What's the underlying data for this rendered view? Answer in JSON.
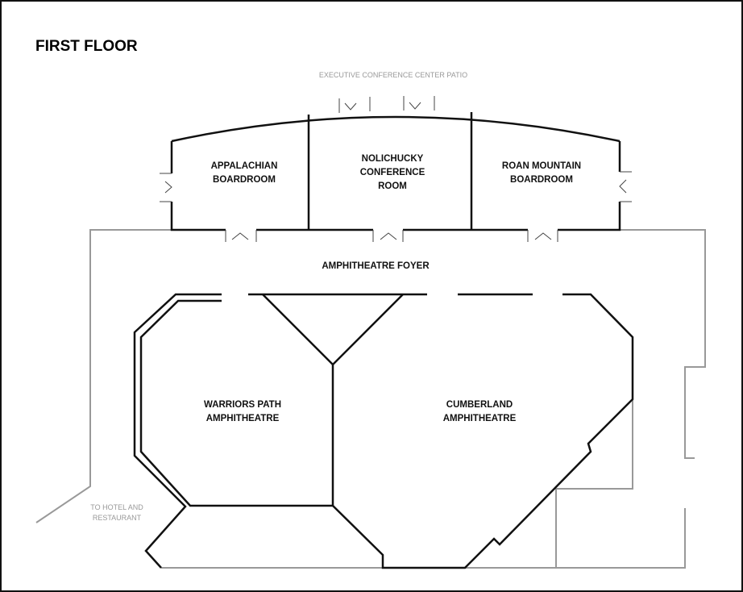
{
  "title": "FIRST FLOOR",
  "patio": "EXECUTIVE CONFERENCE CENTER PATIO",
  "foyer": "AMPHITHEATRE FOYER",
  "rooms": [
    {
      "lines": [
        "APPALACHIAN",
        "BOARDROOM"
      ]
    },
    {
      "lines": [
        "NOLICHUCKY",
        "CONFERENCE",
        "ROOM"
      ]
    },
    {
      "lines": [
        "ROAN MOUNTAIN",
        "BOARDROOM"
      ]
    },
    {
      "lines": [
        "WARRIORS PATH",
        "AMPHITHEATRE"
      ]
    },
    {
      "lines": [
        "CUMBERLAND",
        "AMPHITHEATRE"
      ]
    }
  ],
  "exit": [
    "TO HOTEL AND",
    "RESTAURANT"
  ]
}
